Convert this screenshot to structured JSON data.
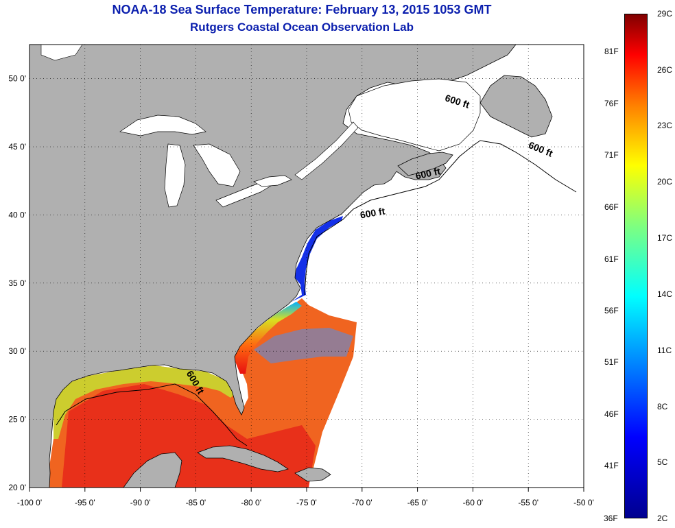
{
  "title": {
    "line1": "NOAA-18 Sea Surface Temperature:  February 13, 2015 1053 GMT",
    "line2": "Rutgers Coastal Ocean Observation Lab"
  },
  "map": {
    "lon_ticks": [
      {
        "value": -100,
        "label": "-100 0'"
      },
      {
        "value": -95,
        "label": "-95 0'"
      },
      {
        "value": -90,
        "label": "-90 0'"
      },
      {
        "value": -85,
        "label": "-85 0'"
      },
      {
        "value": -80,
        "label": "-80 0'"
      },
      {
        "value": -75,
        "label": "-75 0'"
      },
      {
        "value": -70,
        "label": "-70 0'"
      },
      {
        "value": -65,
        "label": "-65 0'"
      },
      {
        "value": -60,
        "label": "-60 0'"
      },
      {
        "value": -55,
        "label": "-55 0'"
      },
      {
        "value": -50,
        "label": "-50 0'"
      }
    ],
    "lat_ticks": [
      {
        "value": 50,
        "label": "50 0'"
      },
      {
        "value": 45,
        "label": "45 0'"
      },
      {
        "value": 40,
        "label": "40 0'"
      },
      {
        "value": 35,
        "label": "35 0'"
      },
      {
        "value": 30,
        "label": "30 0'"
      },
      {
        "value": 25,
        "label": "25 0'"
      },
      {
        "value": 20,
        "label": "20 0'"
      }
    ],
    "contour_labels": [
      {
        "text": "600 ft",
        "lon": -61.5,
        "lat": 48.1
      },
      {
        "text": "600 ft",
        "lon": -54.0,
        "lat": 44.6
      },
      {
        "text": "600 ft",
        "lon": -64.0,
        "lat": 42.8
      },
      {
        "text": "600 ft",
        "lon": -69.0,
        "lat": 39.9
      },
      {
        "text": "600 ft",
        "lon": -85.3,
        "lat": 27.6
      }
    ],
    "colors": {
      "land": "#b0b0b0",
      "ocean_nodata": "#ffffff",
      "water_lakes": "#ffffff",
      "outline": "#000000"
    }
  },
  "colorbar": {
    "fahrenheit": [
      {
        "label": "81F",
        "frac": 0.925
      },
      {
        "label": "76F",
        "frac": 0.822
      },
      {
        "label": "71F",
        "frac": 0.72
      },
      {
        "label": "66F",
        "frac": 0.617
      },
      {
        "label": "61F",
        "frac": 0.514
      },
      {
        "label": "56F",
        "frac": 0.412
      },
      {
        "label": "51F",
        "frac": 0.31
      },
      {
        "label": "46F",
        "frac": 0.207
      },
      {
        "label": "41F",
        "frac": 0.105
      },
      {
        "label": "36F",
        "frac": 0.0
      }
    ],
    "celsius": [
      {
        "label": "29C",
        "frac": 1.0
      },
      {
        "label": "26C",
        "frac": 0.889
      },
      {
        "label": "23C",
        "frac": 0.778
      },
      {
        "label": "20C",
        "frac": 0.667
      },
      {
        "label": "17C",
        "frac": 0.556
      },
      {
        "label": "14C",
        "frac": 0.444
      },
      {
        "label": "11C",
        "frac": 0.333
      },
      {
        "label": "8C",
        "frac": 0.222
      },
      {
        "label": "5C",
        "frac": 0.111
      },
      {
        "label": "2C",
        "frac": 0.0
      }
    ]
  }
}
